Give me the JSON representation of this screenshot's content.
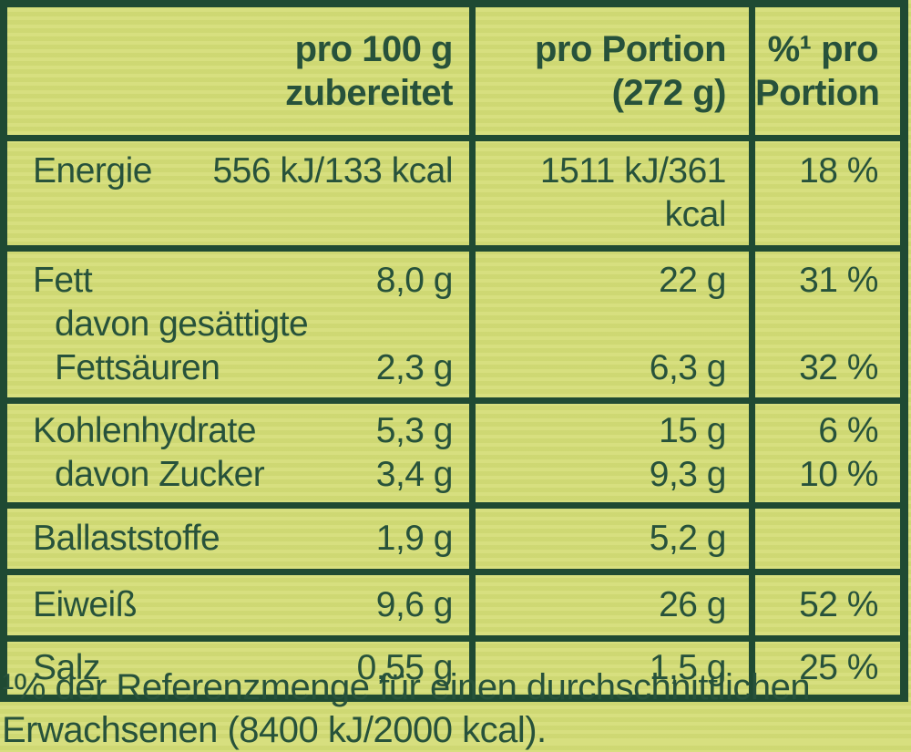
{
  "colors": {
    "background": "#d5dd78",
    "ink": "#27523b",
    "border": "#1f4a33"
  },
  "table": {
    "header": {
      "c1": [
        "pro 100 g",
        "zubereitet"
      ],
      "c2": [
        "pro Portion",
        "(272 g)"
      ],
      "c3": [
        "%¹ pro",
        "Portion"
      ]
    },
    "rows": [
      {
        "name": "energie",
        "lines": [
          {
            "label": "Energie",
            "v100": "556 kJ/133 kcal",
            "portion": "1511 kJ/361 kcal",
            "pct": "18 %"
          }
        ]
      },
      {
        "name": "fett",
        "lines": [
          {
            "label": "Fett",
            "v100": "8,0 g",
            "portion": "22 g",
            "pct": "31 %"
          },
          {
            "label": "davon gesättigte",
            "v100": "",
            "portion": "",
            "pct": ""
          },
          {
            "label": "Fettsäuren",
            "v100": "2,3 g",
            "portion": "6,3 g",
            "pct": "32 %"
          }
        ]
      },
      {
        "name": "kohlenhydrate",
        "lines": [
          {
            "label": "Kohlenhydrate",
            "v100": "5,3 g",
            "portion": "15 g",
            "pct": "6 %"
          },
          {
            "label": "davon Zucker",
            "v100": "3,4 g",
            "portion": "9,3 g",
            "pct": "10 %"
          }
        ]
      },
      {
        "name": "ballaststoffe",
        "lines": [
          {
            "label": "Ballaststoffe",
            "v100": "1,9 g",
            "portion": "5,2 g",
            "pct": ""
          }
        ]
      },
      {
        "name": "eiweiss",
        "lines": [
          {
            "label": "Eiweiß",
            "v100": "9,6 g",
            "portion": "26 g",
            "pct": "52 %"
          }
        ]
      },
      {
        "name": "salz",
        "lines": [
          {
            "label": "Salz",
            "v100": "0,55 g",
            "portion": "1,5 g",
            "pct": "25 %"
          }
        ]
      }
    ]
  },
  "footnote": {
    "line1": "¹% der Referenzmenge für einen durchschnittlichen",
    "line2": "Erwachsenen (8400 kJ/2000 kcal)."
  }
}
